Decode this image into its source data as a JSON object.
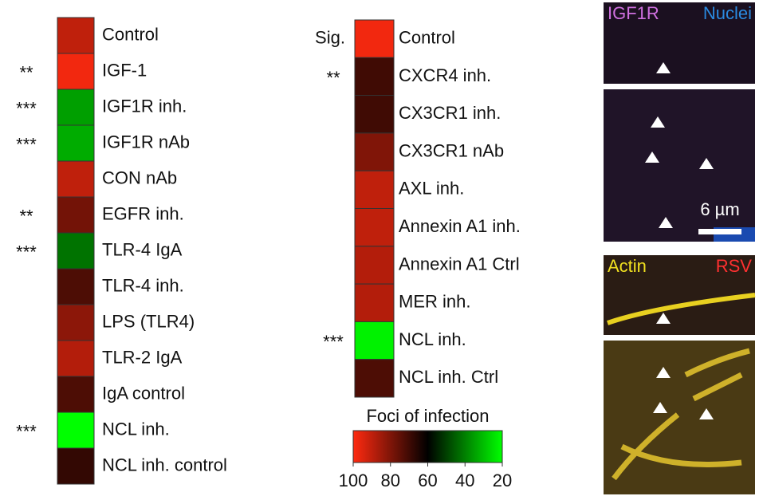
{
  "chart_data": [
    {
      "type": "heatmap",
      "categories": [
        "Control",
        "IGF-1",
        "IGF1R inh.",
        "IGF1R nAb",
        "CON nAb",
        "EGFR inh.",
        "TLR-4 IgA",
        "TLR-4 inh.",
        "LPS (TLR4)",
        "TLR-2 IgA",
        "IgA control",
        "NCL inh.",
        "NCL inh. control"
      ],
      "values": [
        90,
        98,
        35,
        33,
        90,
        78,
        42,
        72,
        82,
        88,
        72,
        20,
        68
      ],
      "significance": [
        null,
        "**",
        "***",
        "***",
        null,
        "**",
        "***",
        null,
        null,
        null,
        null,
        "***",
        null
      ]
    },
    {
      "type": "heatmap",
      "significance_title": "Sig.",
      "categories": [
        "Control",
        "CXCR4 inh.",
        "CX3CR1 inh.",
        "CX3CR1 nAb",
        "AXL inh.",
        "Annexin A1 inh.",
        "Annexin A1 Ctrl",
        "MER inh.",
        "NCL inh.",
        "NCL inh. Ctrl"
      ],
      "values": [
        98,
        70,
        70,
        80,
        90,
        90,
        88,
        88,
        22,
        72
      ],
      "significance": [
        null,
        "**",
        null,
        null,
        null,
        null,
        null,
        null,
        "***",
        null
      ],
      "colorbar": {
        "title": "Foci of infection",
        "lim": [
          100,
          20
        ],
        "ticks": [
          100,
          80,
          60,
          40,
          20
        ],
        "colors": [
          "#ff2a10",
          "#000000",
          "#00ff00"
        ]
      }
    }
  ],
  "images": [
    {
      "labels": [
        "IGF1R",
        "Nuclei"
      ],
      "label_colors": [
        "#d070e0",
        "#2a8ae0"
      ],
      "scale_bar": "6 µm"
    },
    {
      "labels": [
        "Actin",
        "RSV"
      ],
      "label_colors": [
        "#f0e020",
        "#ff3030"
      ]
    }
  ]
}
